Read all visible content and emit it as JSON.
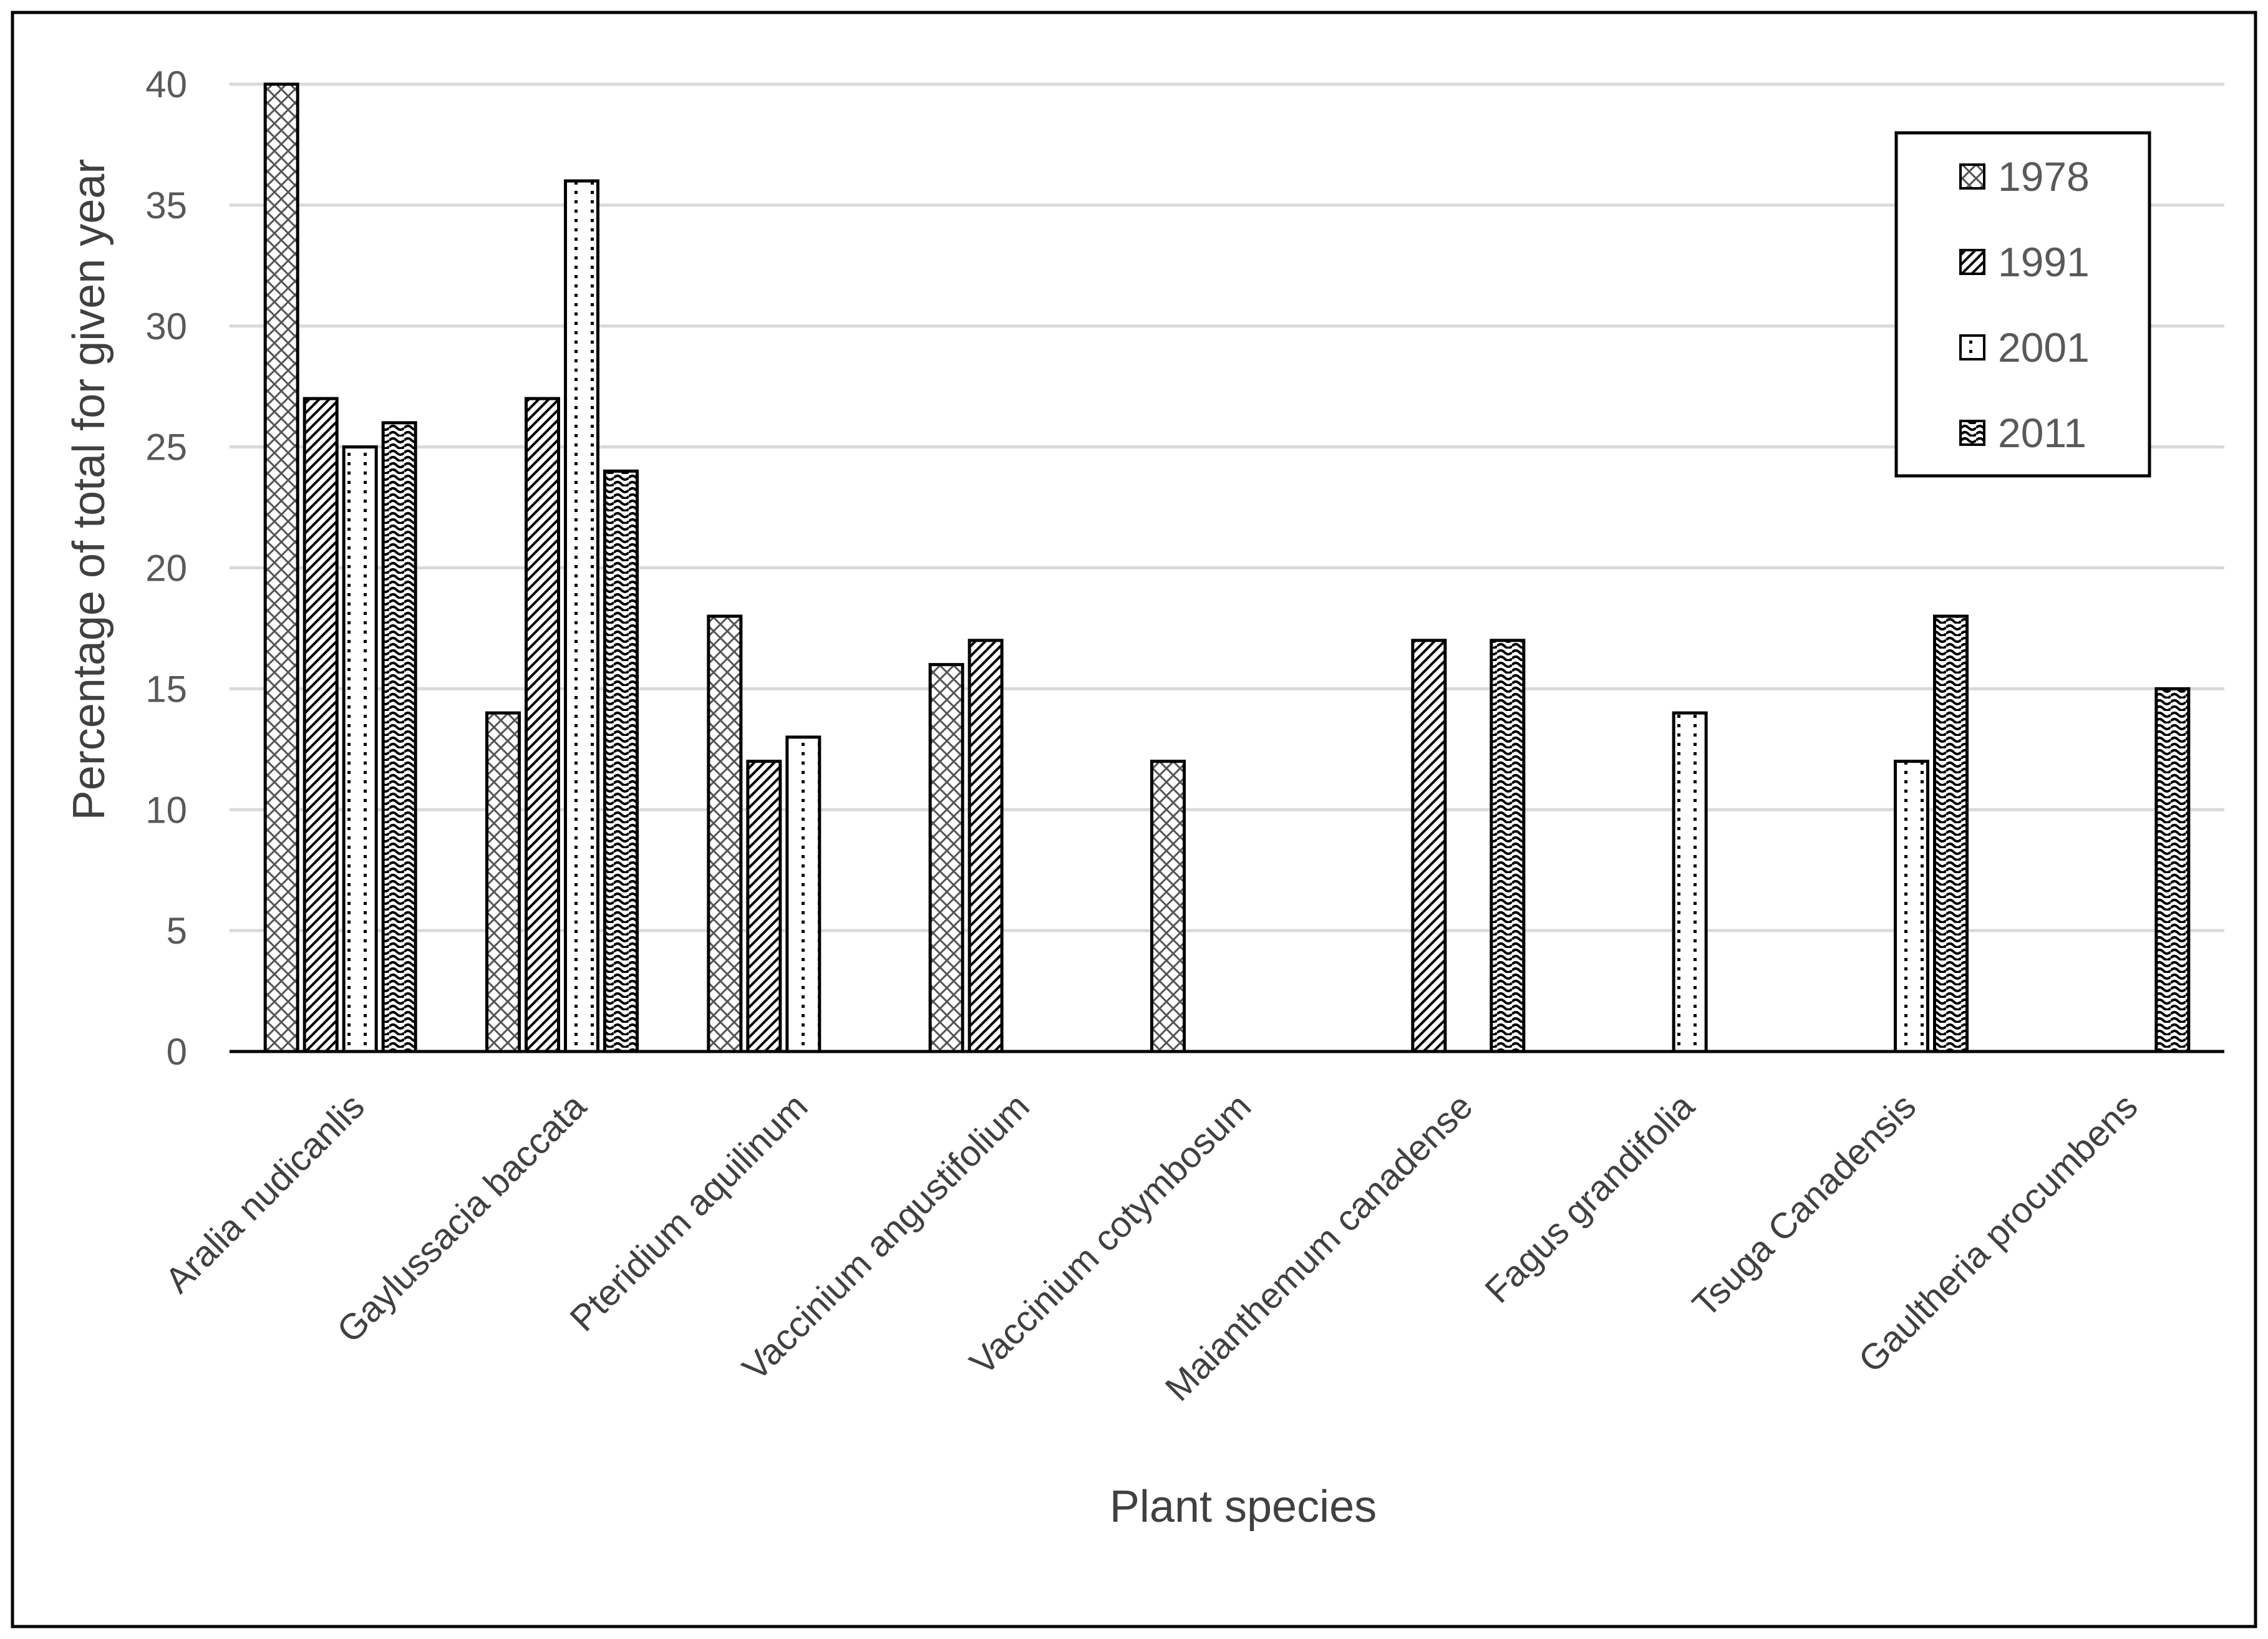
{
  "chart_data": {
    "type": "bar",
    "title": "",
    "xlabel": "Plant species",
    "ylabel": "Percentage of total for given year",
    "ylim": [
      0,
      40
    ],
    "yticks": [
      0,
      5,
      10,
      15,
      20,
      25,
      30,
      35,
      40
    ],
    "grid": true,
    "legend_position": "top-right",
    "categories": [
      "Aralia nudicanlis",
      "Gaylussacia baccata",
      "Pteridium aquilinum",
      "Vaccinium angustifolium",
      "Vaccinium cotymbosum",
      "Maianthemum canadense",
      "Fagus grandifolia",
      "Tsuga Canadensis",
      "Gaultheria procumbens"
    ],
    "series": [
      {
        "name": "1978",
        "pattern": "crosshatch",
        "values": [
          40,
          14,
          18,
          16,
          12,
          0,
          0,
          0,
          0
        ]
      },
      {
        "name": "1991",
        "pattern": "diagonal",
        "values": [
          27,
          27,
          12,
          17,
          0,
          17,
          0,
          0,
          0
        ]
      },
      {
        "name": "2001",
        "pattern": "dots",
        "values": [
          25,
          36,
          13,
          0,
          0,
          0,
          14,
          12,
          0
        ]
      },
      {
        "name": "2011",
        "pattern": "wave",
        "values": [
          26,
          24,
          0,
          0,
          0,
          17,
          0,
          18,
          15
        ]
      }
    ]
  }
}
